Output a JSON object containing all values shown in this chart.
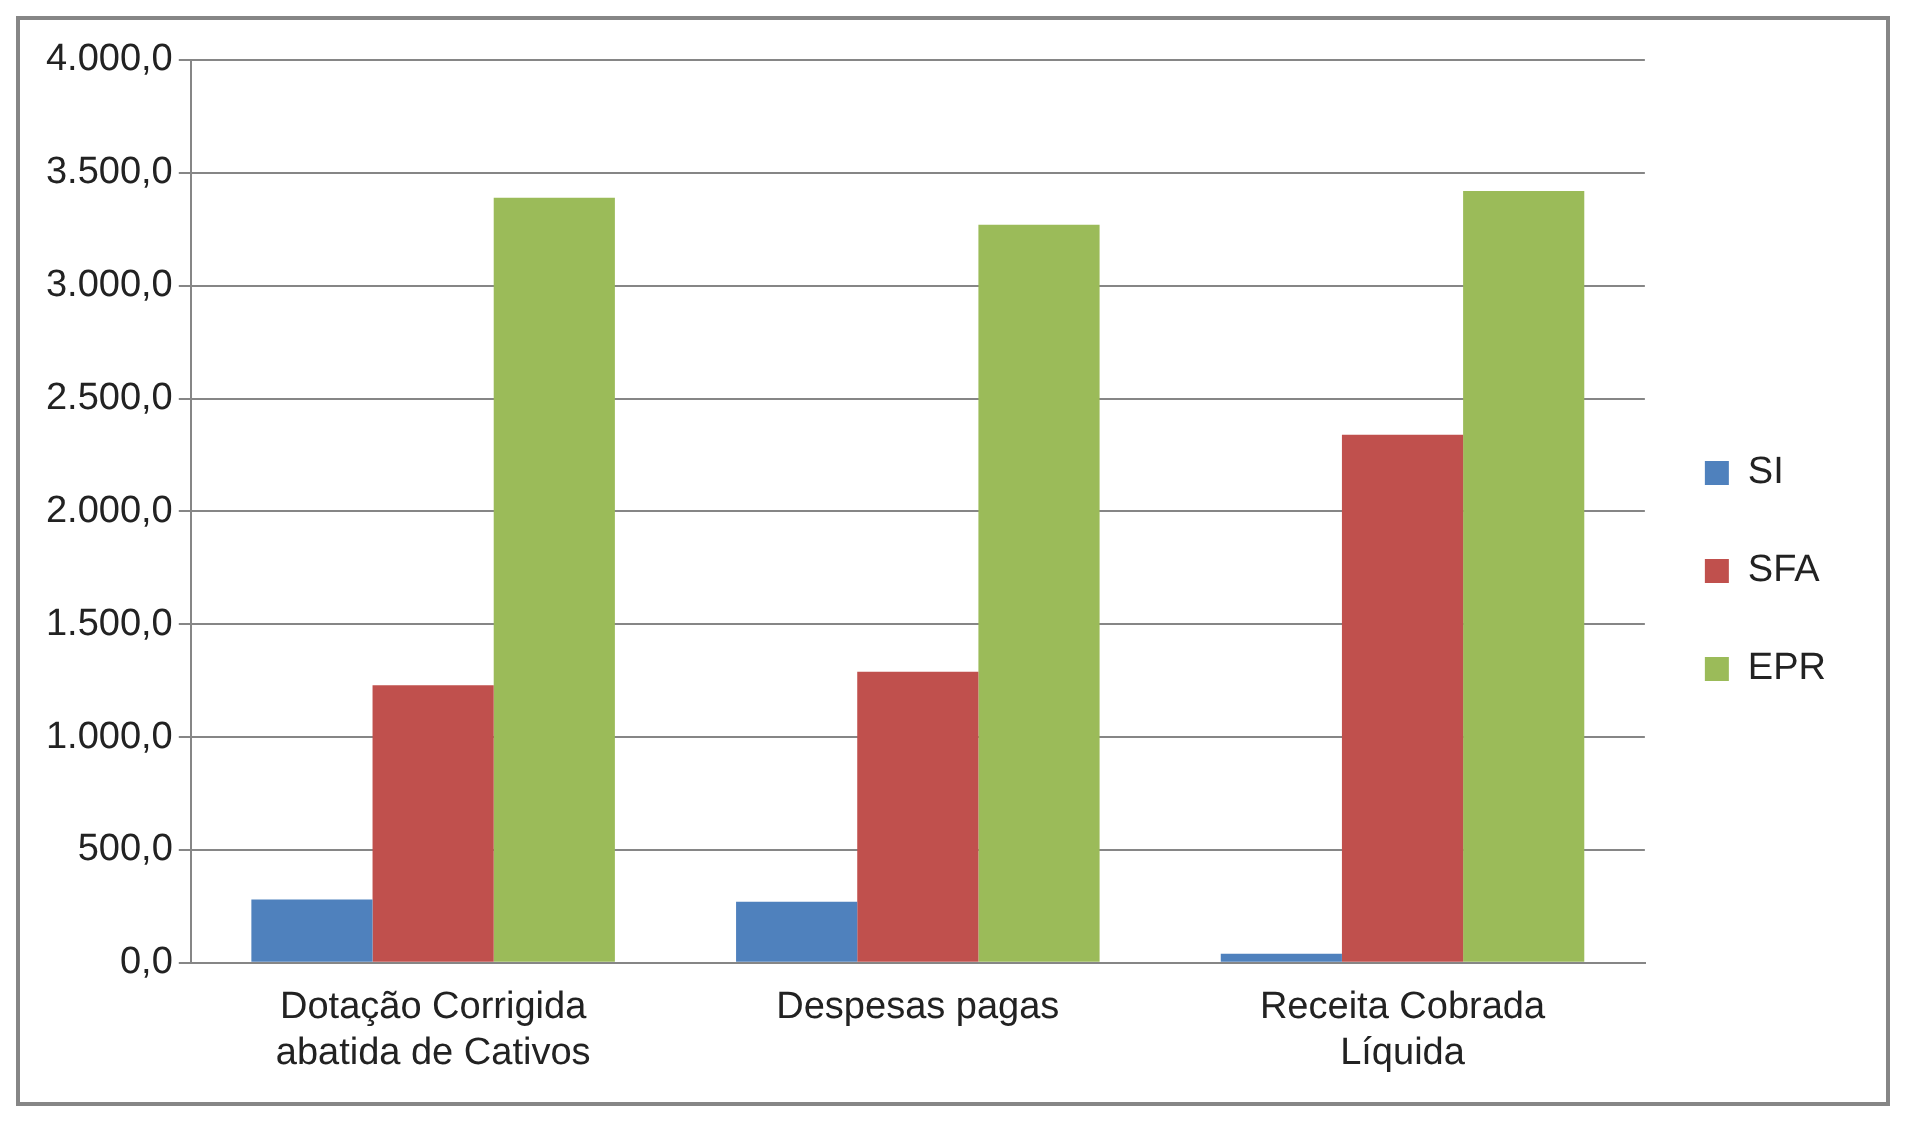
{
  "chart_data": {
    "type": "bar",
    "categories": [
      "Dotação Corrigida abatida de Cativos",
      "Despesas pagas",
      "Receita Cobrada Líquida"
    ],
    "series": [
      {
        "name": "SI",
        "color": "#4f81bd",
        "values": [
          280,
          270,
          40
        ]
      },
      {
        "name": "SFA",
        "color": "#c0504d",
        "values": [
          1230,
          1290,
          2340
        ]
      },
      {
        "name": "EPR",
        "color": "#9bbb59",
        "values": [
          3390,
          3270,
          3420
        ]
      }
    ],
    "ylim": [
      0,
      4000
    ],
    "yticks": [
      {
        "value": 0,
        "label": "0,0"
      },
      {
        "value": 500,
        "label": "500,0"
      },
      {
        "value": 1000,
        "label": "1.000,0"
      },
      {
        "value": 1500,
        "label": "1.500,0"
      },
      {
        "value": 2000,
        "label": "2.000,0"
      },
      {
        "value": 2500,
        "label": "2.500,0"
      },
      {
        "value": 3000,
        "label": "3.000,0"
      },
      {
        "value": 3500,
        "label": "3.500,0"
      },
      {
        "value": 4000,
        "label": "4.000,0"
      }
    ],
    "grid": "y",
    "legend": "right"
  }
}
